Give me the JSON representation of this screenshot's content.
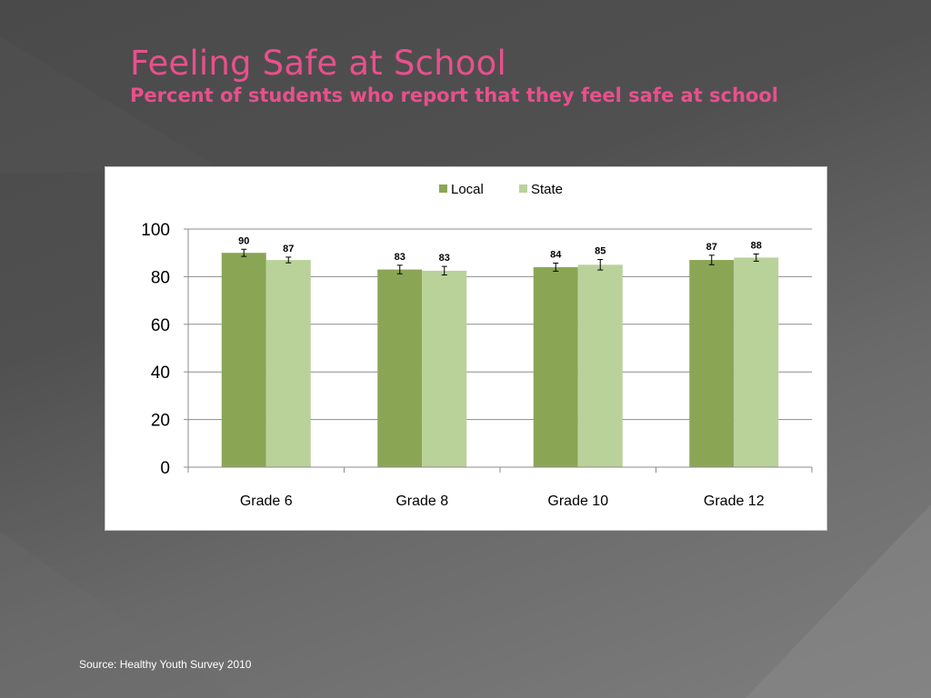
{
  "slide": {
    "title": "Feeling Safe at School",
    "subtitle": "Percent of students who report that they feel safe at school",
    "source": "Source: Healthy Youth Survey 2010"
  },
  "colors": {
    "title": "#e8508c",
    "local": "#8aa655",
    "state": "#b9d29a"
  },
  "chart_data": {
    "type": "bar",
    "title": "",
    "xlabel": "",
    "ylabel": "",
    "categories": [
      "Grade 6",
      "Grade 8",
      "Grade 10",
      "Grade 12"
    ],
    "series": [
      {
        "name": "Local",
        "values": [
          90,
          83,
          84,
          87
        ],
        "labels": [
          "90",
          "83",
          "84",
          "87"
        ],
        "error": [
          1.5,
          1.8,
          1.7,
          2.0
        ]
      },
      {
        "name": "State",
        "values": [
          87,
          82.5,
          85,
          88
        ],
        "labels": [
          "87",
          "83",
          "85",
          "88"
        ],
        "error": [
          1.2,
          1.8,
          2.2,
          1.5
        ]
      }
    ],
    "ylim": [
      0,
      100
    ],
    "yticks": [
      0,
      20,
      40,
      60,
      80,
      100
    ],
    "grid": true,
    "legend": "top-center"
  }
}
